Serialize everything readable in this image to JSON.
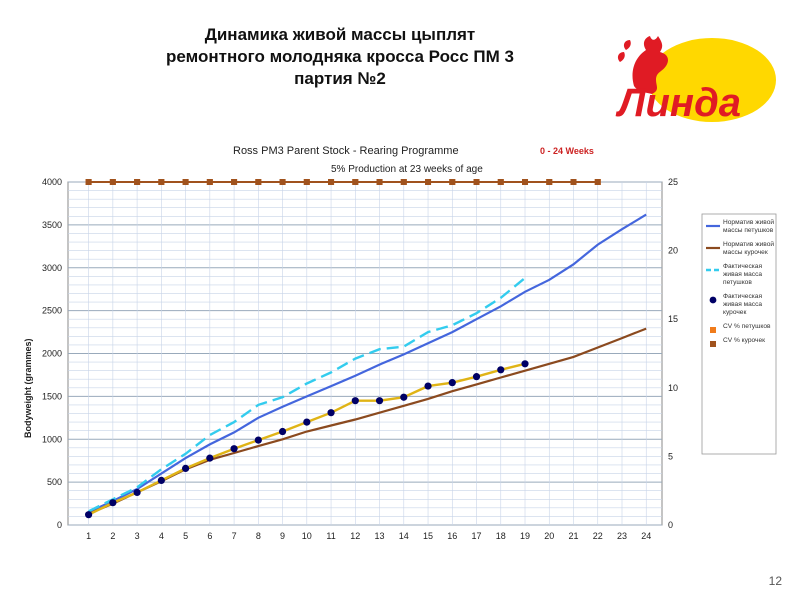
{
  "slide": {
    "title_lines": [
      "Динамика живой массы цыплят",
      "ремонтного молодняка  кросса Росс ПМ 3",
      "партия №2"
    ],
    "page_number": "12"
  },
  "logo": {
    "text": "Линда",
    "colors": {
      "red": "#e01b24",
      "yellow": "#ffd800"
    }
  },
  "chart_data": {
    "type": "line",
    "title": "Ross PM3 Parent Stock - Rearing Programme",
    "title_suffix": "0 - 24 Weeks",
    "subtitle": "5% Production at 23 weeks of age",
    "ylabel": "Bodyweight (grammes)",
    "xlabel": "",
    "x": [
      1,
      2,
      3,
      4,
      5,
      6,
      7,
      8,
      9,
      10,
      11,
      12,
      13,
      14,
      15,
      16,
      17,
      18,
      19,
      20,
      21,
      22,
      23,
      24
    ],
    "ylim": [
      0,
      4000
    ],
    "yticks": [
      0,
      500,
      1000,
      1500,
      2000,
      2500,
      3000,
      3500,
      4000
    ],
    "y2lim": [
      0,
      25
    ],
    "y2ticks": [
      0,
      5,
      10,
      15,
      20,
      25
    ],
    "grid": true,
    "legend_position": "right",
    "series": [
      {
        "name": "Норматив живой массы петушков",
        "axis": "left",
        "style": "solid",
        "color": "#4466dd",
        "points": [
          [
            1,
            150
          ],
          [
            2,
            280
          ],
          [
            3,
            420
          ],
          [
            4,
            600
          ],
          [
            5,
            780
          ],
          [
            6,
            940
          ],
          [
            7,
            1080
          ],
          [
            8,
            1250
          ],
          [
            9,
            1380
          ],
          [
            10,
            1500
          ],
          [
            11,
            1620
          ],
          [
            12,
            1740
          ],
          [
            13,
            1870
          ],
          [
            14,
            1990
          ],
          [
            15,
            2120
          ],
          [
            16,
            2250
          ],
          [
            17,
            2400
          ],
          [
            18,
            2550
          ],
          [
            19,
            2720
          ],
          [
            20,
            2860
          ],
          [
            21,
            3040
          ],
          [
            22,
            3270
          ],
          [
            23,
            3450
          ],
          [
            24,
            3620
          ]
        ]
      },
      {
        "name": "Норматив живой массы курочек",
        "axis": "left",
        "style": "solid",
        "color": "#8b4a1f",
        "points": [
          [
            1,
            130
          ],
          [
            2,
            250
          ],
          [
            3,
            380
          ],
          [
            4,
            510
          ],
          [
            5,
            650
          ],
          [
            6,
            760
          ],
          [
            7,
            840
          ],
          [
            8,
            920
          ],
          [
            9,
            1000
          ],
          [
            10,
            1090
          ],
          [
            11,
            1160
          ],
          [
            12,
            1230
          ],
          [
            13,
            1310
          ],
          [
            14,
            1390
          ],
          [
            15,
            1470
          ],
          [
            16,
            1560
          ],
          [
            17,
            1640
          ],
          [
            18,
            1720
          ],
          [
            19,
            1800
          ],
          [
            20,
            1880
          ],
          [
            21,
            1960
          ],
          [
            22,
            2070
          ],
          [
            23,
            2180
          ],
          [
            24,
            2290
          ]
        ]
      },
      {
        "name": "Фактическая живая масса петушков",
        "axis": "left",
        "style": "dashed",
        "color": "#33ccee",
        "points": [
          [
            1,
            160
          ],
          [
            2,
            300
          ],
          [
            3,
            440
          ],
          [
            4,
            650
          ],
          [
            5,
            830
          ],
          [
            6,
            1050
          ],
          [
            7,
            1200
          ],
          [
            8,
            1400
          ],
          [
            9,
            1490
          ],
          [
            10,
            1650
          ],
          [
            11,
            1780
          ],
          [
            12,
            1940
          ],
          [
            13,
            2050
          ],
          [
            14,
            2080
          ],
          [
            15,
            2250
          ],
          [
            16,
            2330
          ],
          [
            17,
            2470
          ],
          [
            18,
            2650
          ],
          [
            19,
            2880
          ]
        ]
      },
      {
        "name": "Фактическая живая масса курочек",
        "axis": "left",
        "style": "dots",
        "color": "#000066",
        "points": [
          [
            1,
            120
          ],
          [
            2,
            260
          ],
          [
            3,
            380
          ],
          [
            4,
            520
          ],
          [
            5,
            660
          ],
          [
            6,
            780
          ],
          [
            7,
            890
          ],
          [
            8,
            990
          ],
          [
            9,
            1090
          ],
          [
            10,
            1200
          ],
          [
            11,
            1310
          ],
          [
            12,
            1450
          ],
          [
            13,
            1450
          ],
          [
            14,
            1490
          ],
          [
            15,
            1620
          ],
          [
            16,
            1660
          ],
          [
            17,
            1730
          ],
          [
            18,
            1810
          ],
          [
            19,
            1880
          ]
        ]
      },
      {
        "name": "CV % петушков",
        "axis": "right",
        "style": "markers",
        "color": "#f07b1b",
        "points": [
          [
            1,
            25
          ],
          [
            2,
            25
          ],
          [
            3,
            25
          ],
          [
            4,
            25
          ],
          [
            5,
            25
          ],
          [
            6,
            25
          ],
          [
            7,
            25
          ],
          [
            8,
            25
          ],
          [
            9,
            25
          ],
          [
            10,
            25
          ],
          [
            11,
            25
          ],
          [
            12,
            25
          ],
          [
            13,
            25
          ],
          [
            14,
            25
          ],
          [
            15,
            25
          ],
          [
            16,
            25
          ],
          [
            17,
            25
          ],
          [
            18,
            25
          ],
          [
            19,
            25
          ],
          [
            20,
            25
          ],
          [
            21,
            25
          ],
          [
            22,
            25
          ]
        ]
      },
      {
        "name": "CV % курочек",
        "axis": "right",
        "style": "markers",
        "color": "#a0521d",
        "points": [
          [
            1,
            25
          ],
          [
            2,
            25
          ],
          [
            3,
            25
          ],
          [
            4,
            25
          ],
          [
            5,
            25
          ],
          [
            6,
            25
          ],
          [
            7,
            25
          ],
          [
            8,
            25
          ],
          [
            9,
            25
          ],
          [
            10,
            25
          ],
          [
            11,
            25
          ],
          [
            12,
            25
          ],
          [
            13,
            25
          ],
          [
            14,
            25
          ],
          [
            15,
            25
          ],
          [
            16,
            25
          ],
          [
            17,
            25
          ],
          [
            18,
            25
          ],
          [
            19,
            25
          ],
          [
            20,
            25
          ],
          [
            21,
            25
          ],
          [
            22,
            25
          ]
        ]
      }
    ],
    "overlay": {
      "name": "Фактическая живая масса курочек (линия)",
      "color": "#e0b416",
      "points": [
        [
          1,
          120
        ],
        [
          2,
          260
        ],
        [
          3,
          380
        ],
        [
          4,
          520
        ],
        [
          5,
          660
        ],
        [
          6,
          780
        ],
        [
          7,
          890
        ],
        [
          8,
          990
        ],
        [
          9,
          1090
        ],
        [
          10,
          1200
        ],
        [
          11,
          1310
        ],
        [
          12,
          1450
        ],
        [
          13,
          1450
        ],
        [
          14,
          1490
        ],
        [
          15,
          1620
        ],
        [
          16,
          1660
        ],
        [
          17,
          1730
        ],
        [
          18,
          1810
        ],
        [
          19,
          1880
        ]
      ]
    }
  }
}
